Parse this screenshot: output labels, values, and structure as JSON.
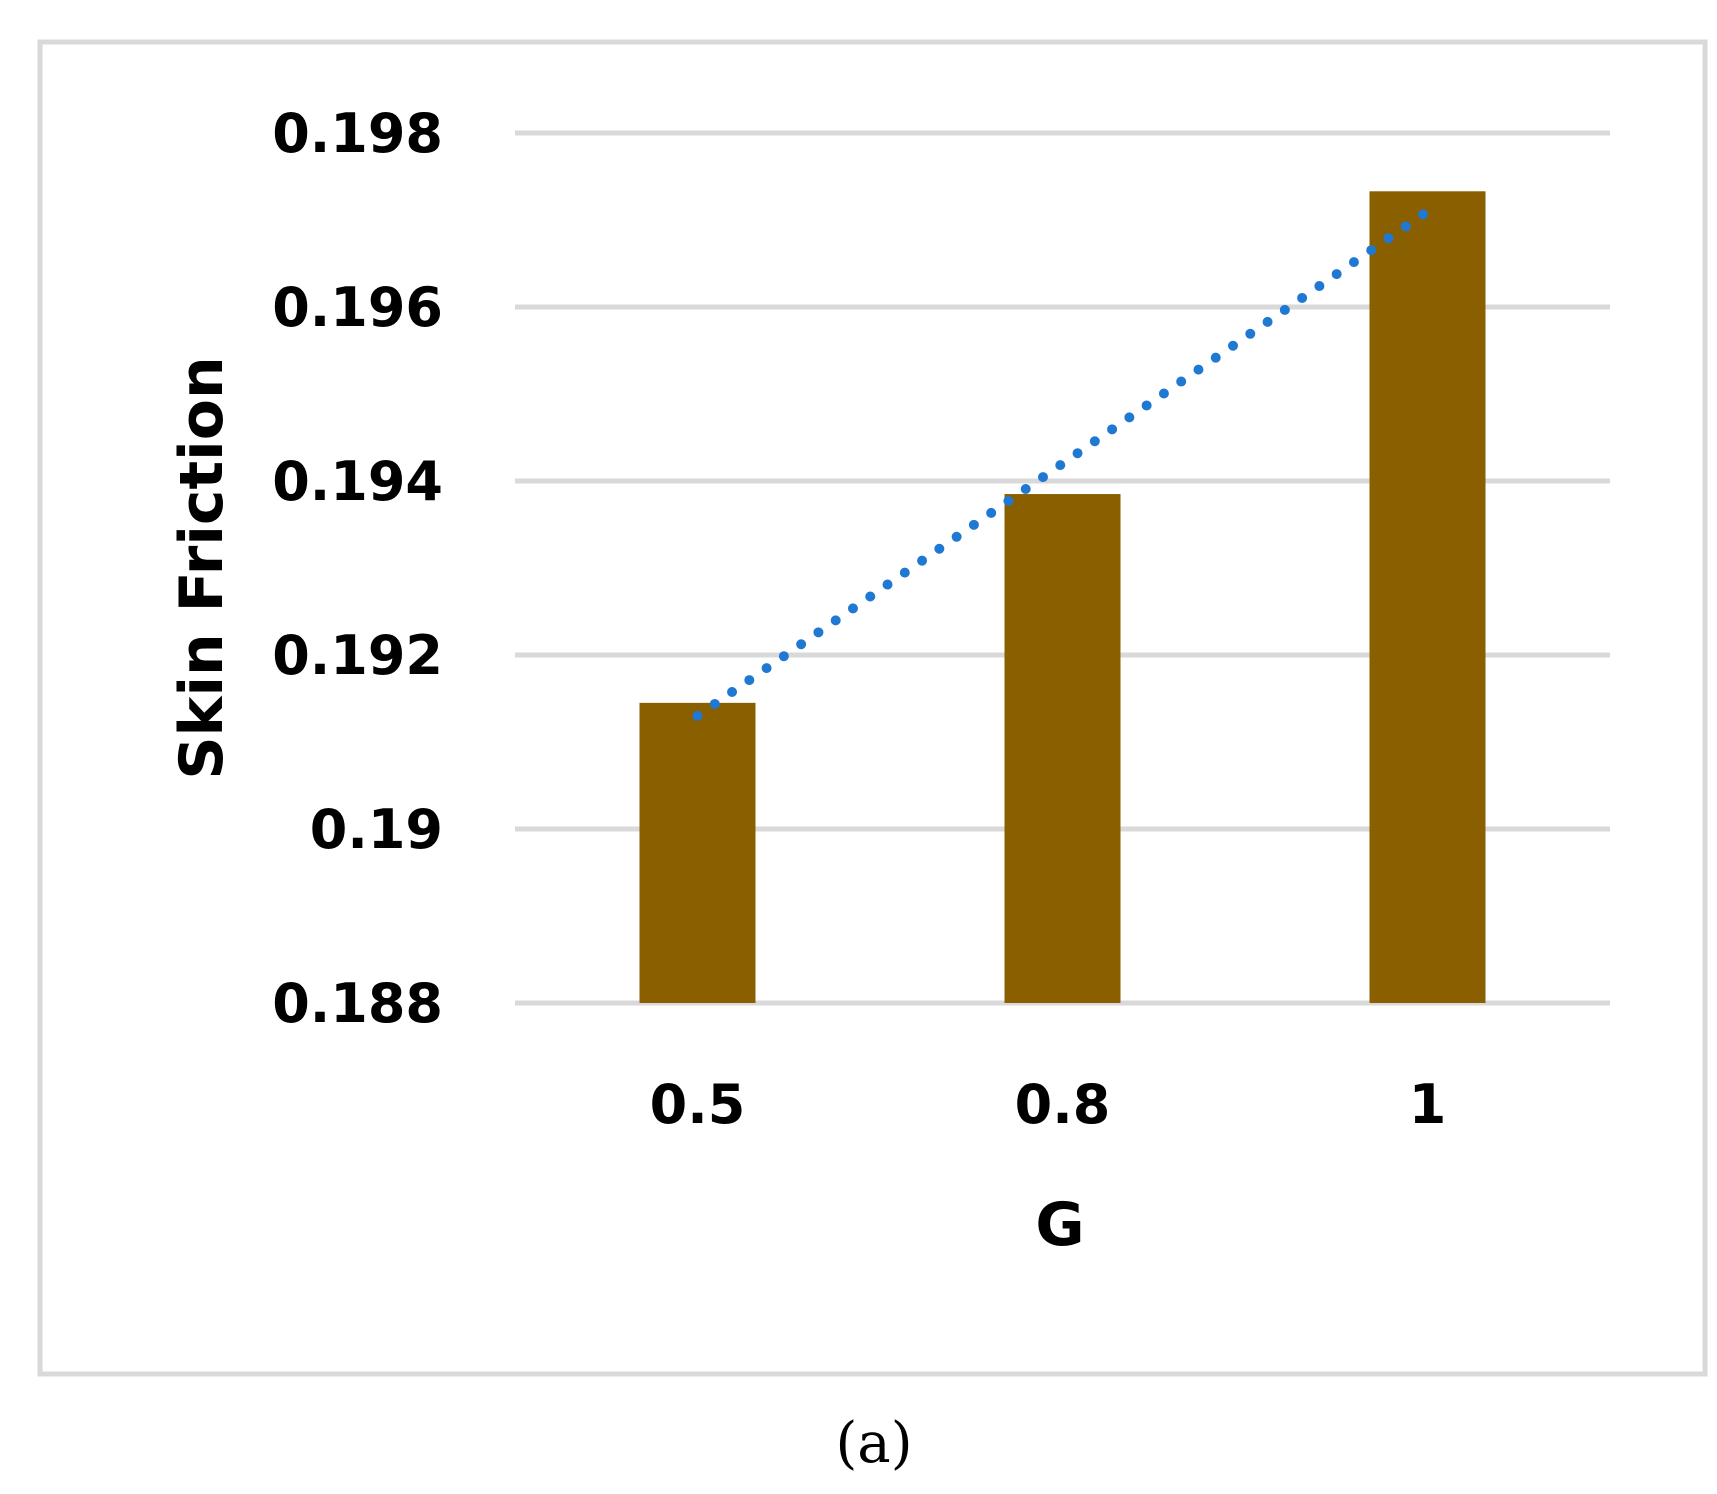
{
  "chart_data": {
    "type": "bar",
    "categories": [
      "0.5",
      "0.8",
      "1"
    ],
    "values": [
      0.19145,
      0.19385,
      0.19733
    ],
    "xlabel": "G",
    "ylabel": "Skin Friction",
    "ylim": [
      0.188,
      0.198
    ],
    "yticks": [
      "0.188",
      "0.19",
      "0.192",
      "0.194",
      "0.196",
      "0.198"
    ],
    "grid": true,
    "trendline": {
      "type": "linear",
      "style": "dotted",
      "color": "#1f78d1",
      "start": 0.1913,
      "end": 0.1971
    },
    "colors": {
      "bar": "#8a5f00",
      "grid": "#d9d9d9",
      "frame": "#d9d9d9"
    }
  },
  "caption": "(a)"
}
